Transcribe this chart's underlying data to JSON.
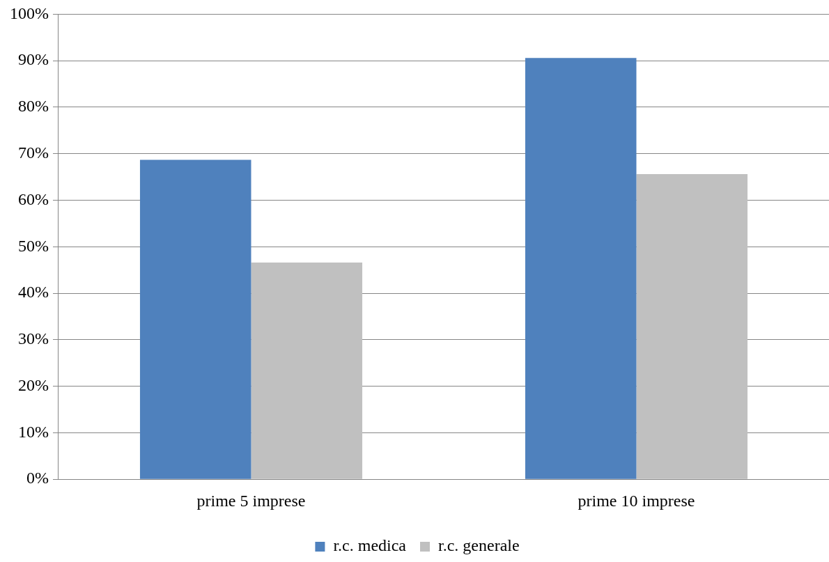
{
  "chart_data": {
    "type": "bar",
    "categories": [
      "prime 5 imprese",
      "prime 10 imprese"
    ],
    "series": [
      {
        "name": "r.c. medica",
        "color": "#4f81bd",
        "values": [
          68.7,
          90.6
        ]
      },
      {
        "name": "r.c. generale",
        "color": "#c0c0c0",
        "values": [
          46.6,
          65.6
        ]
      }
    ],
    "ylim": [
      0,
      100
    ],
    "yticks": [
      {
        "value": 0,
        "label": "0%"
      },
      {
        "value": 10,
        "label": "10%"
      },
      {
        "value": 20,
        "label": "20%"
      },
      {
        "value": 30,
        "label": "30%"
      },
      {
        "value": 40,
        "label": "40%"
      },
      {
        "value": 50,
        "label": "50%"
      },
      {
        "value": 60,
        "label": "60%"
      },
      {
        "value": 70,
        "label": "70%"
      },
      {
        "value": 80,
        "label": "80%"
      },
      {
        "value": 90,
        "label": "90%"
      },
      {
        "value": 100,
        "label": "100%"
      }
    ],
    "grid": "y",
    "legend": "bottom"
  }
}
